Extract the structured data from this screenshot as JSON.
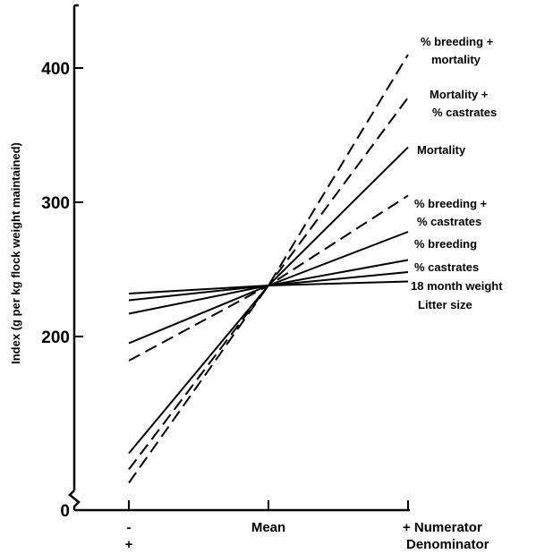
{
  "chart_data": {
    "type": "line",
    "title": "",
    "ylabel": "Index (g per kg flock weight maintained)",
    "xlabel": "",
    "x_tick_labels": [
      {
        "x": -1,
        "top": "-",
        "bottom": "+"
      },
      {
        "x": 0,
        "top": "Mean",
        "bottom": ""
      },
      {
        "x": 1,
        "top": "+ Numerator",
        "bottom": "Denominator"
      }
    ],
    "y_ticks": [
      {
        "value": 0,
        "label": "0"
      },
      {
        "value": 200,
        "label": "200"
      },
      {
        "value": 300,
        "label": "300"
      },
      {
        "value": 400,
        "label": "400"
      }
    ],
    "ylim": [
      0,
      450
    ],
    "y_axis_break": true,
    "grid": false,
    "series": [
      {
        "name": "% breeding + mortality",
        "label_lines": [
          "% breeding +",
          "mortality"
        ],
        "style": "dashed",
        "x": [
          -1,
          0,
          1
        ],
        "y": [
          91,
          238,
          410
        ]
      },
      {
        "name": "Mortality + % castrates",
        "label_lines": [
          "Mortality +",
          "% castrates"
        ],
        "style": "dashed",
        "x": [
          -1,
          0,
          1
        ],
        "y": [
          101,
          238,
          378
        ]
      },
      {
        "name": "Mortality",
        "label_lines": [
          "Mortality"
        ],
        "style": "solid",
        "x": [
          -1,
          0,
          1
        ],
        "y": [
          113,
          238,
          341
        ]
      },
      {
        "name": "% breeding + % castrates",
        "label_lines": [
          "% breeding +",
          "% castrates"
        ],
        "style": "dashed",
        "x": [
          -1,
          0,
          1
        ],
        "y": [
          182,
          238,
          305
        ]
      },
      {
        "name": "% breeding",
        "label_lines": [
          "% breeding"
        ],
        "style": "solid",
        "x": [
          -1,
          0,
          1
        ],
        "y": [
          195,
          238,
          278
        ]
      },
      {
        "name": "% castrates",
        "label_lines": [
          "% castrates"
        ],
        "style": "solid",
        "x": [
          -1,
          0,
          1
        ],
        "y": [
          217,
          238,
          257
        ]
      },
      {
        "name": "18 month weight",
        "label_lines": [
          "18 month weight"
        ],
        "style": "solid",
        "x": [
          -1,
          0,
          1
        ],
        "y": [
          227,
          238,
          248
        ]
      },
      {
        "name": "Litter size",
        "label_lines": [
          "Litter size"
        ],
        "style": "solid",
        "x": [
          -1,
          0,
          1
        ],
        "y": [
          232,
          238,
          241
        ]
      }
    ]
  }
}
